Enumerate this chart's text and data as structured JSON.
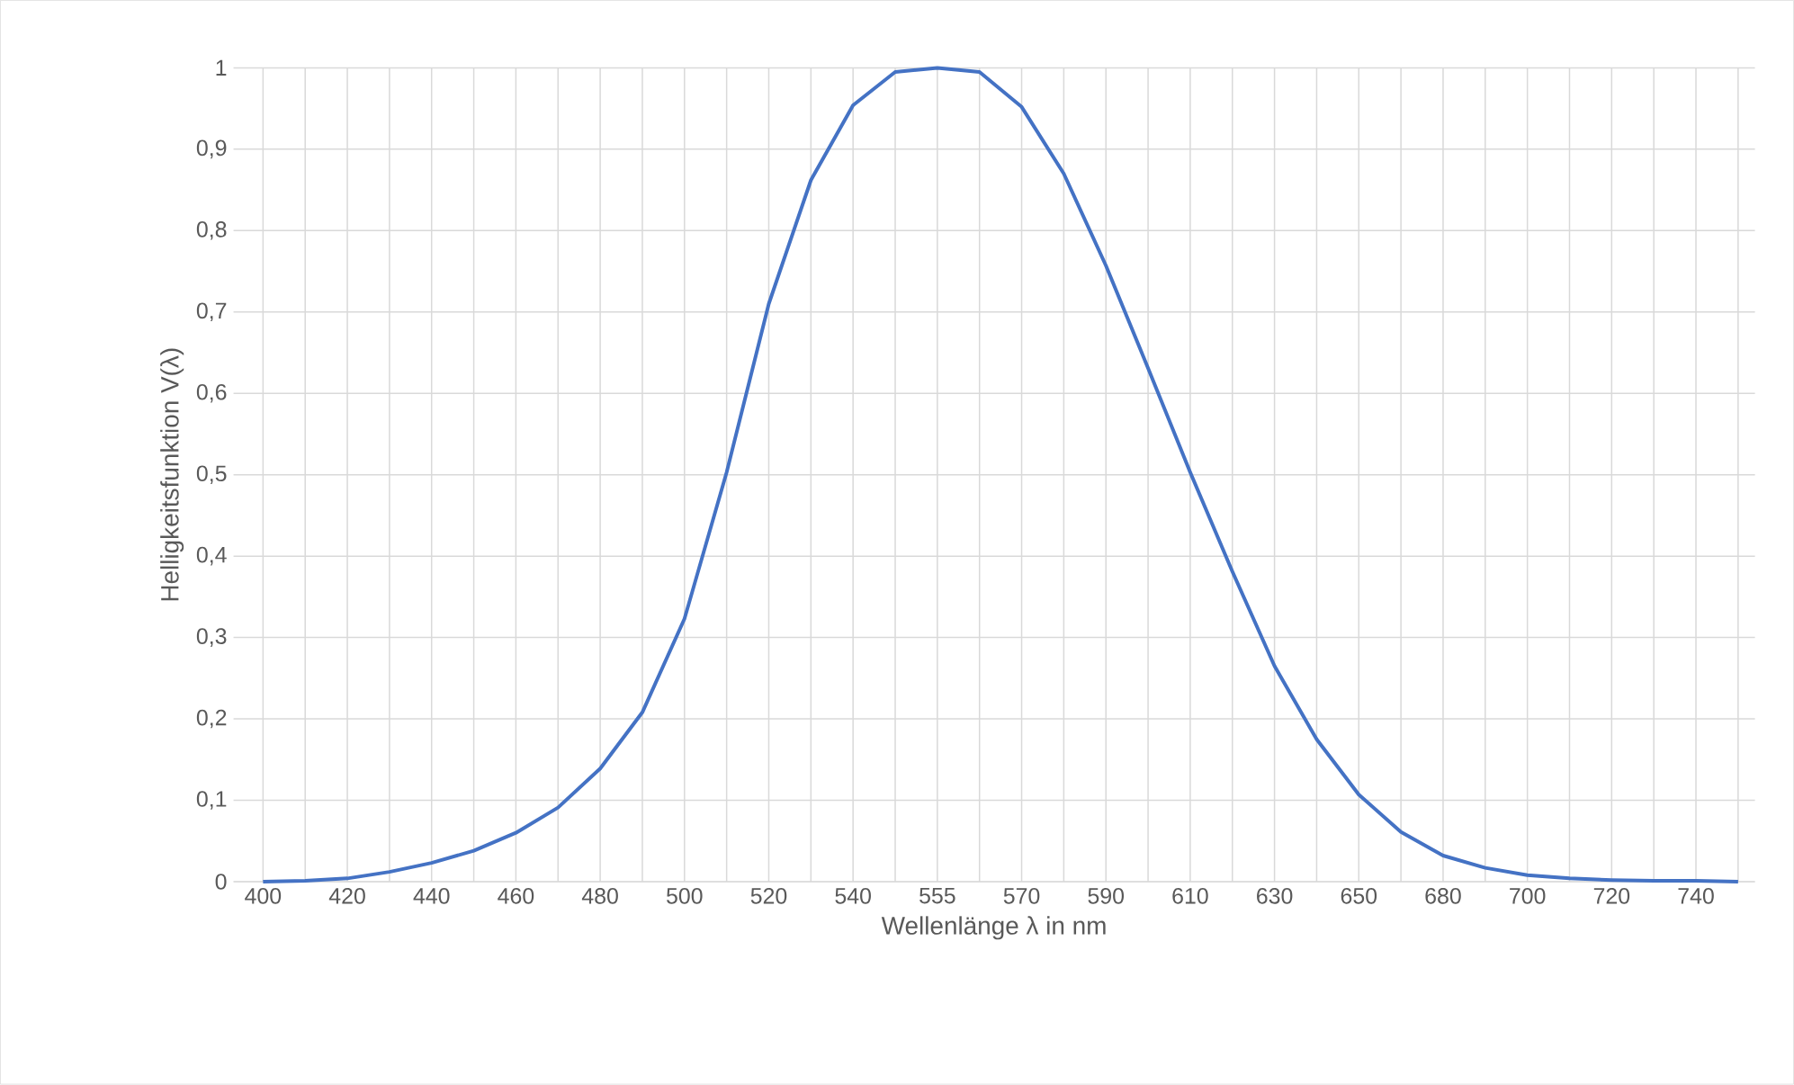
{
  "chart_data": {
    "type": "line",
    "xlabel": "Wellenlänge λ in nm",
    "ylabel": "Helligkeitsfunktion V(λ)",
    "categories": [
      "400",
      null,
      "420",
      null,
      "440",
      null,
      "460",
      null,
      "480",
      null,
      "500",
      null,
      "520",
      null,
      "540",
      null,
      "555",
      null,
      "570",
      null,
      "590",
      null,
      "610",
      null,
      "630",
      null,
      "650",
      null,
      "680",
      null,
      "700",
      null,
      "720",
      null,
      "740",
      null
    ],
    "series": [
      {
        "color": "#4472c4",
        "values": [
          0,
          0.001,
          0.004,
          0.012,
          0.023,
          0.038,
          0.06,
          0.091,
          0.139,
          0.208,
          0.323,
          0.503,
          0.71,
          0.862,
          0.954,
          0.995,
          1.0,
          0.995,
          0.952,
          0.87,
          0.757,
          0.631,
          0.503,
          0.381,
          0.265,
          0.175,
          0.107,
          0.061,
          0.032,
          0.017,
          0.008,
          0.004,
          0.002,
          0.001,
          0.001,
          0
        ]
      }
    ],
    "ylim": [
      0,
      1
    ],
    "yticks": [
      0,
      {
        "value": 0.1,
        "label": "0,1"
      },
      {
        "value": 0.2,
        "label": "0,2"
      },
      {
        "value": 0.3,
        "label": "0,3"
      },
      {
        "value": 0.4,
        "label": "0,4"
      },
      {
        "value": 0.5,
        "label": "0,5"
      },
      {
        "value": 0.6,
        "label": "0,6"
      },
      {
        "value": 0.7,
        "label": "0,7"
      },
      {
        "value": 0.8,
        "label": "0,8"
      },
      {
        "value": 0.9,
        "label": "0,9"
      },
      1
    ],
    "grid": true,
    "marker": "none",
    "line_style": "solid"
  }
}
